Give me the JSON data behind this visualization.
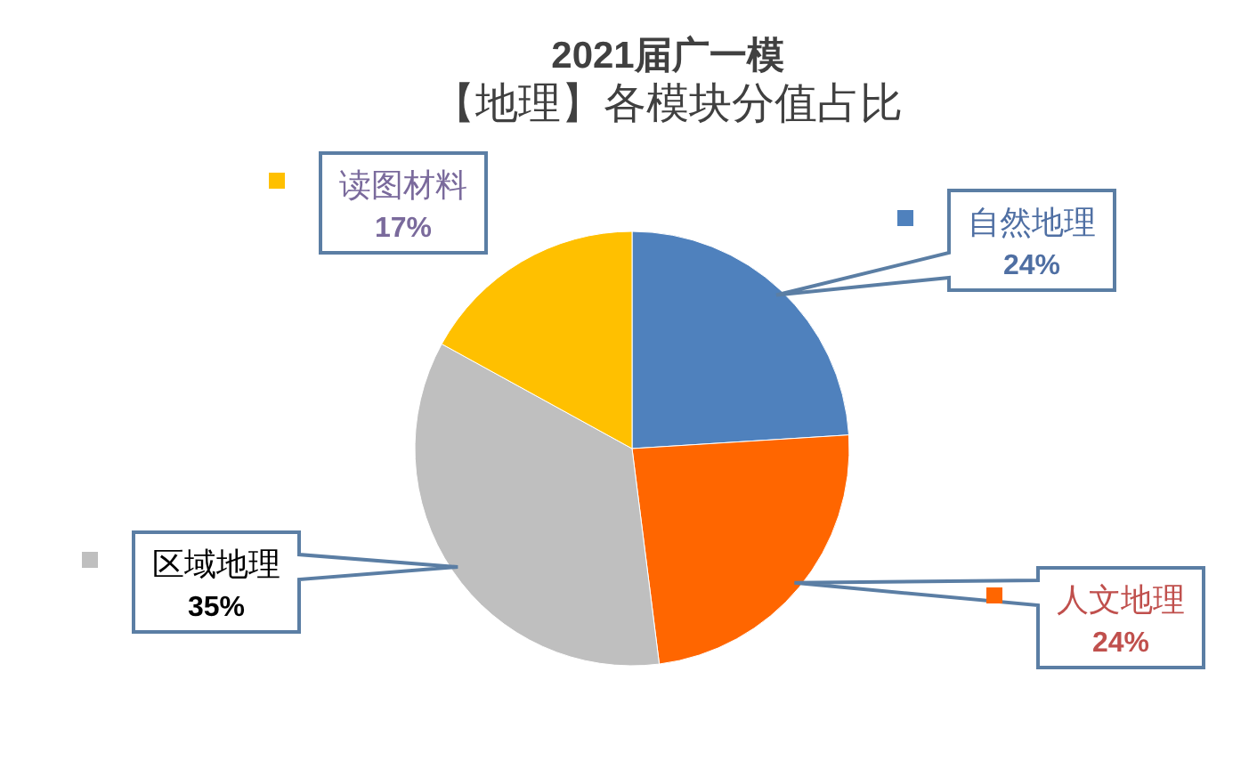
{
  "chart_data": {
    "type": "pie",
    "title": "2021届广一模",
    "subtitle": "【地理】各模块分值占比",
    "categories": [
      "自然地理",
      "人文地理",
      "区域地理",
      "读图材料"
    ],
    "values": [
      24,
      24,
      35,
      17
    ],
    "colors": [
      "#4f81bd",
      "#ff6600",
      "#bfbfbf",
      "#ffc000"
    ],
    "value_labels": [
      "24%",
      "24%",
      "35%",
      "17%"
    ],
    "legend": "left"
  }
}
